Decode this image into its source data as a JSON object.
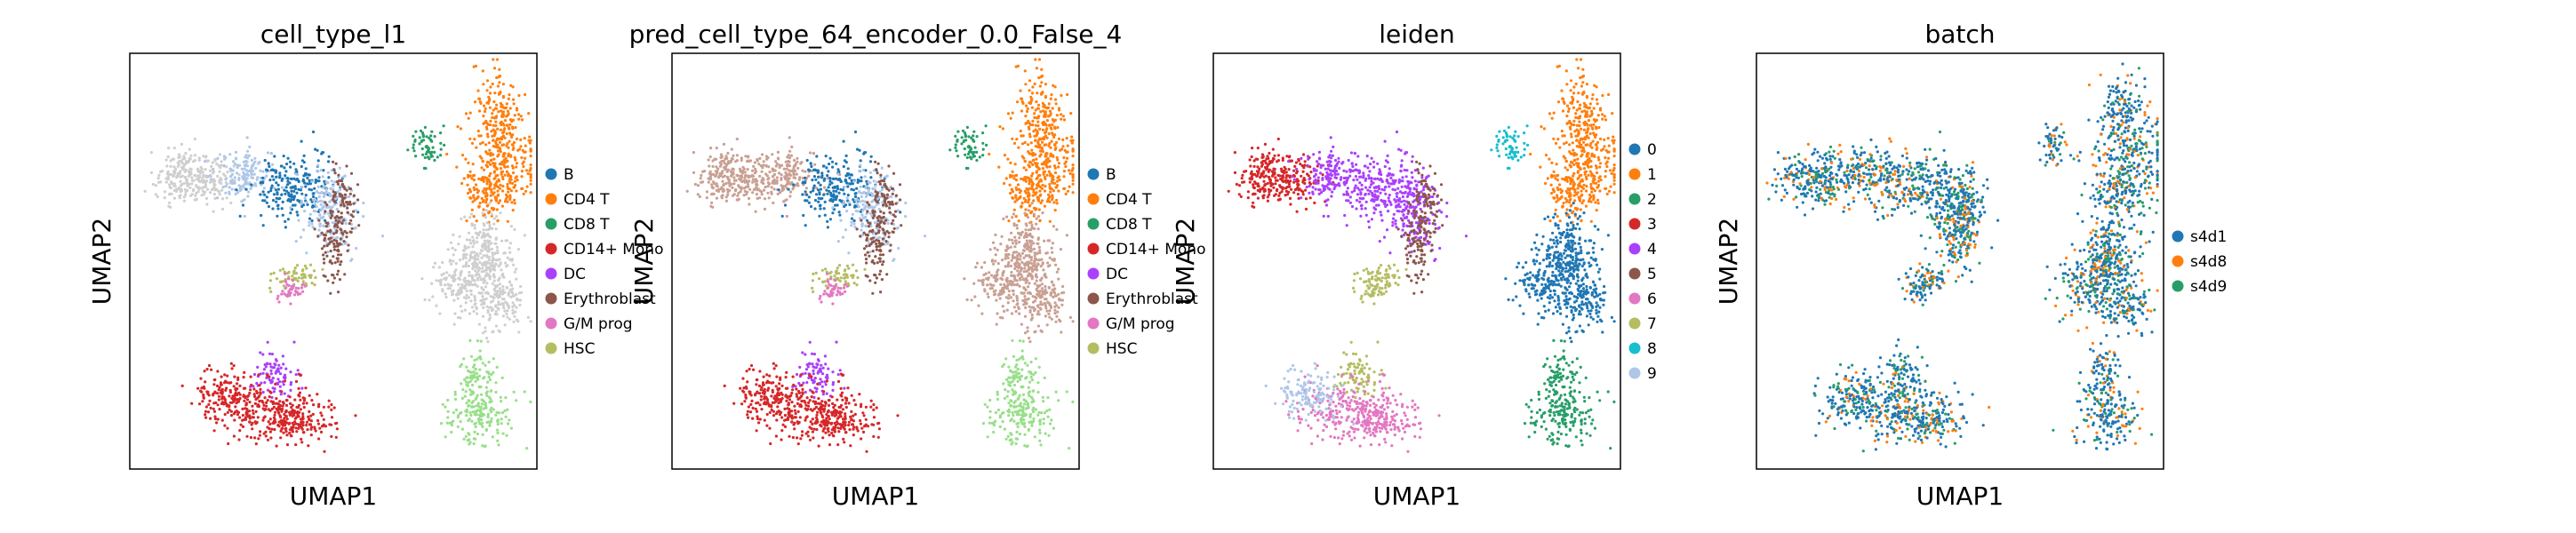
{
  "chart_data": [
    {
      "type": "scatter",
      "title": "cell_type_l1",
      "xlabel": "UMAP1",
      "ylabel": "UMAP2",
      "legend_position": "right",
      "categories": [
        {
          "name": "B",
          "color": "#1f77b4"
        },
        {
          "name": "CD4 T",
          "color": "#ff7f0e"
        },
        {
          "name": "CD8 T",
          "color": "#279e68"
        },
        {
          "name": "CD14+ Mono",
          "color": "#d62728"
        },
        {
          "name": "DC",
          "color": "#aa40fc"
        },
        {
          "name": "Erythroblast",
          "color": "#8c564b"
        },
        {
          "name": "G/M prog",
          "color": "#e377c2"
        },
        {
          "name": "HSC",
          "color": "#b5bd61"
        }
      ]
    },
    {
      "type": "scatter",
      "title": "pred_cell_type_64_encoder_0.0_False_4",
      "xlabel": "UMAP1",
      "ylabel": "UMAP2",
      "legend_position": "right",
      "categories": [
        {
          "name": "B",
          "color": "#1f77b4"
        },
        {
          "name": "CD4 T",
          "color": "#ff7f0e"
        },
        {
          "name": "CD8 T",
          "color": "#279e68"
        },
        {
          "name": "CD14+ Mono",
          "color": "#d62728"
        },
        {
          "name": "DC",
          "color": "#aa40fc"
        },
        {
          "name": "Erythroblast",
          "color": "#8c564b"
        },
        {
          "name": "G/M prog",
          "color": "#e377c2"
        },
        {
          "name": "HSC",
          "color": "#b5bd61"
        }
      ]
    },
    {
      "type": "scatter",
      "title": "leiden",
      "xlabel": "UMAP1",
      "ylabel": "UMAP2",
      "legend_position": "right",
      "categories": [
        {
          "name": "0",
          "color": "#1f77b4"
        },
        {
          "name": "1",
          "color": "#ff7f0e"
        },
        {
          "name": "2",
          "color": "#279e68"
        },
        {
          "name": "3",
          "color": "#d62728"
        },
        {
          "name": "4",
          "color": "#aa40fc"
        },
        {
          "name": "5",
          "color": "#8c564b"
        },
        {
          "name": "6",
          "color": "#e377c2"
        },
        {
          "name": "7",
          "color": "#b5bd61"
        },
        {
          "name": "8",
          "color": "#17becf"
        },
        {
          "name": "9",
          "color": "#aec7e8"
        }
      ]
    },
    {
      "type": "scatter",
      "title": "batch",
      "xlabel": "UMAP1",
      "ylabel": "UMAP2",
      "legend_position": "right",
      "categories": [
        {
          "name": "s4d1",
          "color": "#1f77b4"
        },
        {
          "name": "s4d8",
          "color": "#ff7f0e"
        },
        {
          "name": "s4d9",
          "color": "#279e68"
        }
      ]
    }
  ]
}
